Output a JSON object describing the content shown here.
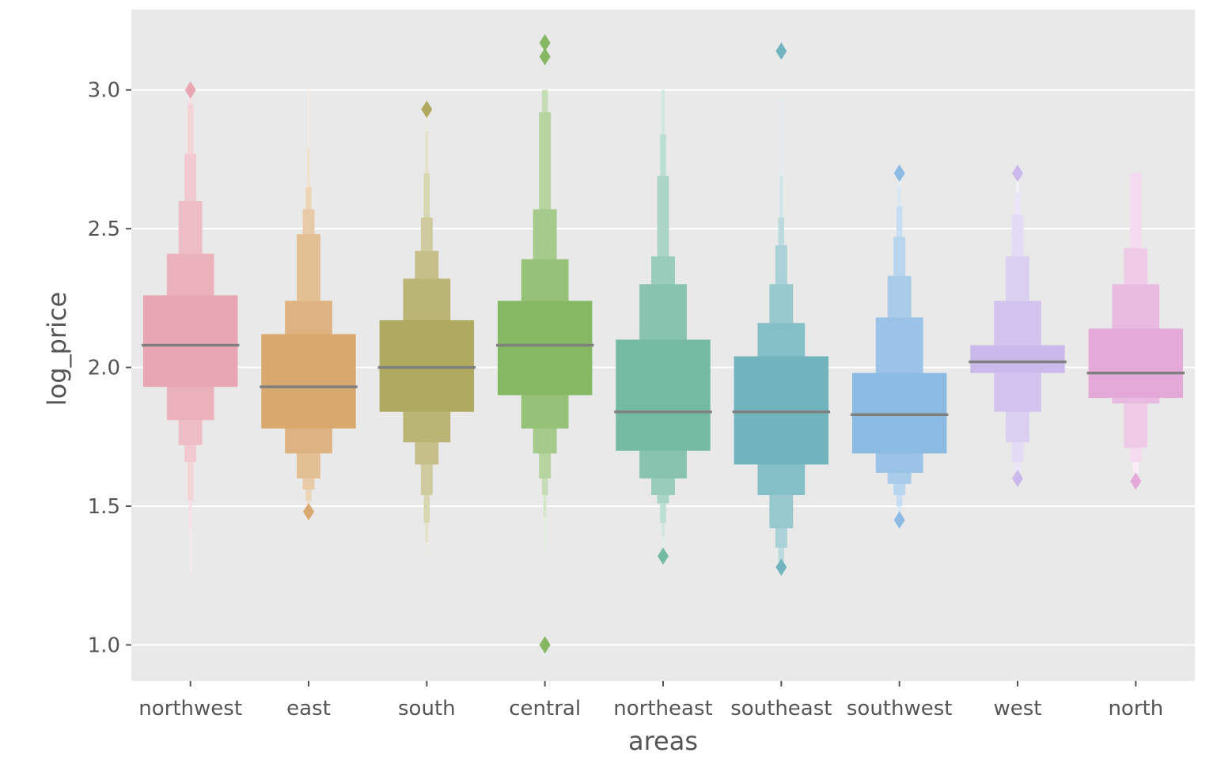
{
  "chart_data": {
    "type": "boxen",
    "xlabel": "areas",
    "ylabel": "log_price",
    "ylim": [
      0.87,
      3.29
    ],
    "y_ticks": [
      {
        "value": 1.0,
        "label": "1.0"
      },
      {
        "value": 1.5,
        "label": "1.5"
      },
      {
        "value": 2.0,
        "label": "2.0"
      },
      {
        "value": 2.5,
        "label": "2.5"
      },
      {
        "value": 3.0,
        "label": "3.0"
      }
    ],
    "grid": true,
    "legend": "none",
    "style": "ggplot",
    "median_color": "#808080",
    "categories": [
      {
        "name": "northwest",
        "color": "#e8a6b2",
        "median": 2.08,
        "letter_values": [
          [
            1.93,
            2.26
          ],
          [
            1.81,
            2.41
          ],
          [
            1.72,
            2.6
          ],
          [
            1.66,
            2.77
          ],
          [
            1.52,
            2.95
          ],
          [
            1.42,
            3.0
          ],
          [
            1.26,
            3.0
          ]
        ],
        "outliers": [
          3.0
        ]
      },
      {
        "name": "east",
        "color": "#d9a86e",
        "median": 1.93,
        "letter_values": [
          [
            1.78,
            2.12
          ],
          [
            1.69,
            2.24
          ],
          [
            1.6,
            2.48
          ],
          [
            1.56,
            2.57
          ],
          [
            1.52,
            2.65
          ],
          [
            1.5,
            2.79
          ],
          [
            1.48,
            3.0
          ]
        ],
        "outliers": [
          1.48
        ]
      },
      {
        "name": "south",
        "color": "#b0aa60",
        "median": 2.0,
        "letter_values": [
          [
            1.84,
            2.17
          ],
          [
            1.73,
            2.32
          ],
          [
            1.65,
            2.42
          ],
          [
            1.54,
            2.54
          ],
          [
            1.44,
            2.7
          ],
          [
            1.37,
            2.85
          ],
          [
            1.31,
            2.92
          ]
        ],
        "outliers": [
          2.93
        ]
      },
      {
        "name": "central",
        "color": "#86b864",
        "median": 2.08,
        "letter_values": [
          [
            1.9,
            2.24
          ],
          [
            1.78,
            2.39
          ],
          [
            1.69,
            2.57
          ],
          [
            1.6,
            2.92
          ],
          [
            1.54,
            3.0
          ],
          [
            1.46,
            3.0
          ],
          [
            1.33,
            3.0
          ]
        ],
        "outliers": [
          3.17,
          3.12,
          1.0
        ]
      },
      {
        "name": "northeast",
        "color": "#75baa2",
        "median": 1.84,
        "letter_values": [
          [
            1.7,
            2.1
          ],
          [
            1.6,
            2.3
          ],
          [
            1.54,
            2.4
          ],
          [
            1.51,
            2.69
          ],
          [
            1.44,
            2.84
          ],
          [
            1.39,
            3.0
          ],
          [
            1.33,
            3.0
          ]
        ],
        "outliers": [
          1.32
        ]
      },
      {
        "name": "southeast",
        "color": "#72b4bd",
        "median": 1.84,
        "letter_values": [
          [
            1.65,
            2.04
          ],
          [
            1.54,
            2.16
          ],
          [
            1.42,
            2.3
          ],
          [
            1.35,
            2.44
          ],
          [
            1.3,
            2.54
          ],
          [
            1.29,
            2.69
          ],
          [
            1.28,
            2.97
          ]
        ],
        "outliers": [
          3.14,
          1.28
        ]
      },
      {
        "name": "southwest",
        "color": "#8bbae3",
        "median": 1.83,
        "letter_values": [
          [
            1.69,
            1.98
          ],
          [
            1.62,
            2.18
          ],
          [
            1.58,
            2.33
          ],
          [
            1.54,
            2.47
          ],
          [
            1.5,
            2.58
          ],
          [
            1.47,
            2.65
          ],
          [
            1.45,
            2.69
          ]
        ],
        "outliers": [
          2.7,
          1.45
        ]
      },
      {
        "name": "west",
        "color": "#cbb9ec",
        "median": 2.02,
        "letter_values": [
          [
            1.98,
            2.08
          ],
          [
            1.84,
            2.24
          ],
          [
            1.73,
            2.4
          ],
          [
            1.66,
            2.55
          ],
          [
            1.62,
            2.63
          ],
          [
            1.61,
            2.69
          ]
        ],
        "outliers": [
          2.7,
          1.6
        ]
      },
      {
        "name": "north",
        "color": "#e4a9d8",
        "median": 1.98,
        "letter_values": [
          [
            1.89,
            2.14
          ],
          [
            1.87,
            2.3
          ],
          [
            1.71,
            2.43
          ],
          [
            1.66,
            2.7
          ],
          [
            1.62,
            2.7
          ]
        ],
        "outliers": [
          1.59
        ]
      }
    ]
  }
}
